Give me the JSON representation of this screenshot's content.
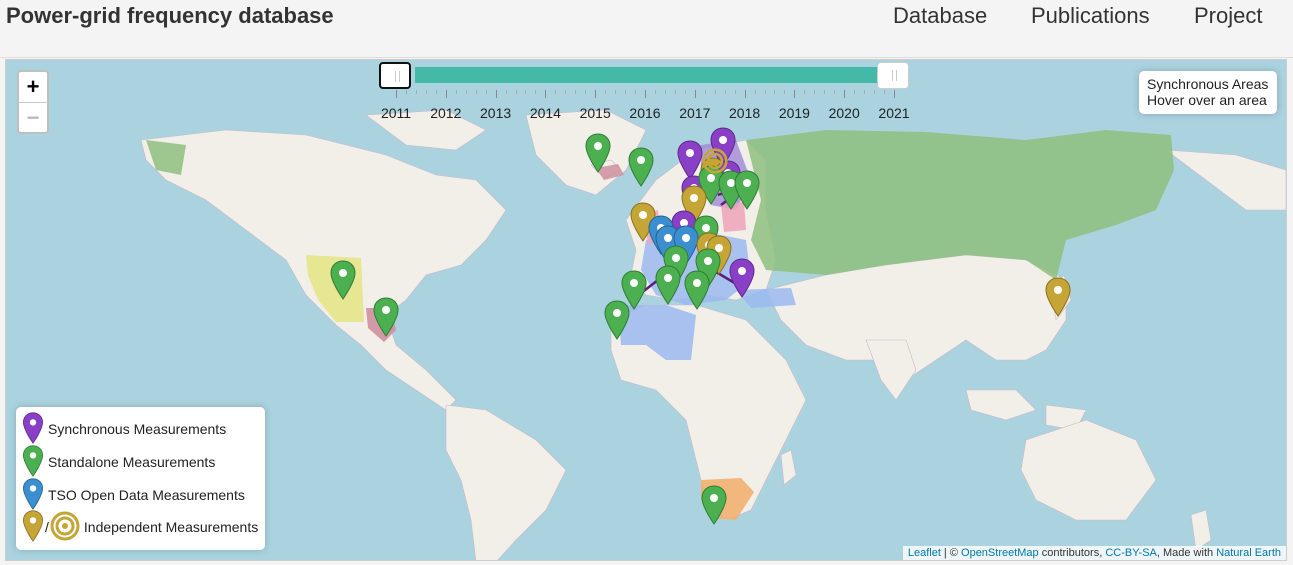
{
  "header": {
    "site_title": "Power-grid frequency database",
    "nav": [
      "Database",
      "Publications",
      "Project"
    ]
  },
  "map": {
    "zoom_in": "+",
    "zoom_out": "−",
    "sync_info": {
      "title": "Synchronous Areas",
      "hint": "Hover over an area"
    },
    "timeline": {
      "years": [
        "2011",
        "2012",
        "2013",
        "2014",
        "2015",
        "2016",
        "2017",
        "2018",
        "2019",
        "2020",
        "2021"
      ],
      "range_start": "2011",
      "range_end": "2021"
    },
    "legend": [
      {
        "label": "Synchronous Measurements",
        "color": "#8a3fc7"
      },
      {
        "label": "Standalone Measurements",
        "color": "#4caf50"
      },
      {
        "label": "TSO Open Data Measurements",
        "color": "#3b8fd0"
      },
      {
        "label": "Independent Measurements",
        "color": "#c6a537",
        "separator": "/"
      }
    ],
    "attribution": {
      "leaflet": "Leaflet",
      "sep1": " | © ",
      "osm": "OpenStreetMap",
      "contrib": " contributors, ",
      "license": "CC-BY-SA",
      "made": ", Made with ",
      "ne": "Natural Earth"
    }
  }
}
